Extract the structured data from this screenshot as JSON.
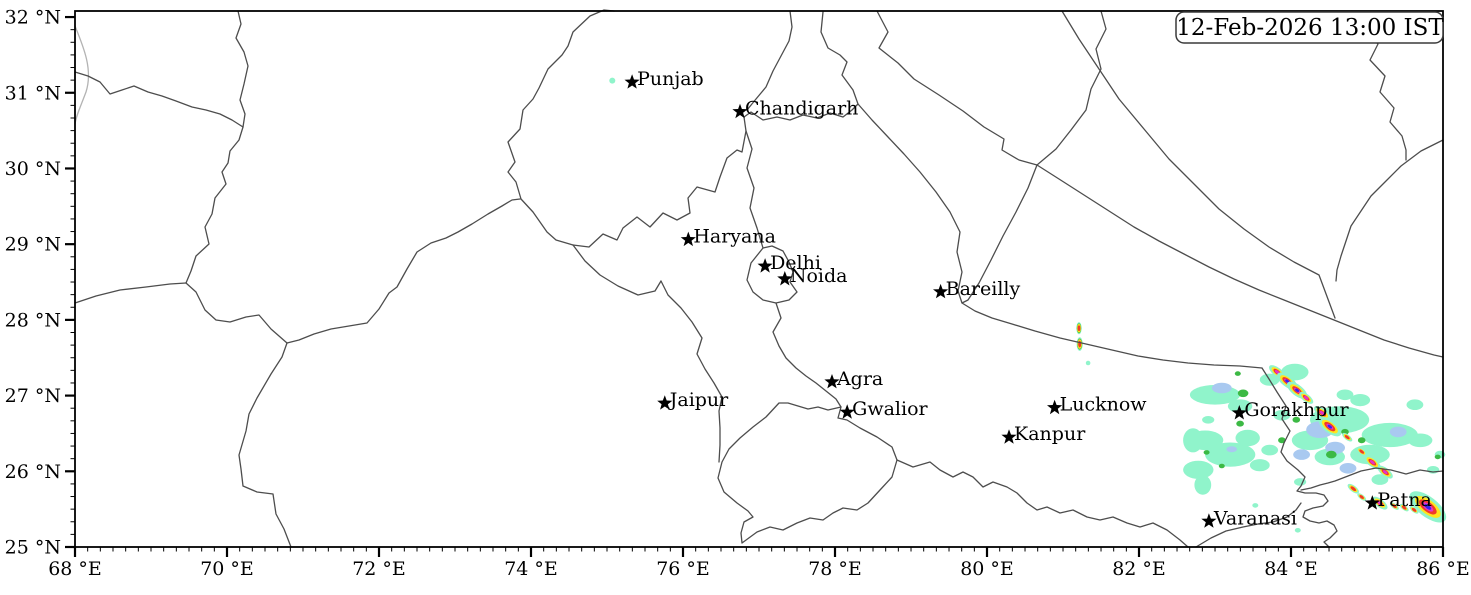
{
  "timestamp": {
    "text": "12-Feb-2026 13:00 IST"
  },
  "axes": {
    "lon_min": 68,
    "lon_max": 86,
    "lat_min": 25,
    "lat_max": 32.08,
    "x_ticks": [
      {
        "value": 68,
        "label": "68 °E"
      },
      {
        "value": 70,
        "label": "70 °E"
      },
      {
        "value": 72,
        "label": "72 °E"
      },
      {
        "value": 74,
        "label": "74 °E"
      },
      {
        "value": 76,
        "label": "76 °E"
      },
      {
        "value": 78,
        "label": "78 °E"
      },
      {
        "value": 80,
        "label": "80 °E"
      },
      {
        "value": 82,
        "label": "82 °E"
      },
      {
        "value": 84,
        "label": "84 °E"
      },
      {
        "value": 86,
        "label": "86 °E"
      }
    ],
    "y_ticks": [
      {
        "value": 25,
        "label": "25 °N"
      },
      {
        "value": 26,
        "label": "26 °N"
      },
      {
        "value": 27,
        "label": "27 °N"
      },
      {
        "value": 28,
        "label": "28 °N"
      },
      {
        "value": 29,
        "label": "29 °N"
      },
      {
        "value": 30,
        "label": "30 °N"
      },
      {
        "value": 31,
        "label": "31 °N"
      },
      {
        "value": 32,
        "label": "32 °N"
      }
    ],
    "minor_tick_step_deg": 0.16667
  },
  "cities": [
    {
      "name": "Punjab",
      "lon": 75.33,
      "lat": 31.14
    },
    {
      "name": "Chandigarh",
      "lon": 76.75,
      "lat": 30.75
    },
    {
      "name": "Haryana",
      "lon": 76.07,
      "lat": 29.06
    },
    {
      "name": "Delhi",
      "lon": 77.08,
      "lat": 28.71
    },
    {
      "name": "Noida",
      "lon": 77.34,
      "lat": 28.54
    },
    {
      "name": "Bareilly",
      "lon": 79.39,
      "lat": 28.37
    },
    {
      "name": "Agra",
      "lon": 77.96,
      "lat": 27.18
    },
    {
      "name": "Jaipur",
      "lon": 75.76,
      "lat": 26.9
    },
    {
      "name": "Gwalior",
      "lon": 78.16,
      "lat": 26.78
    },
    {
      "name": "Lucknow",
      "lon": 80.89,
      "lat": 26.84
    },
    {
      "name": "Kanpur",
      "lon": 80.29,
      "lat": 26.45
    },
    {
      "name": "Gorakhpur",
      "lon": 83.32,
      "lat": 26.77
    },
    {
      "name": "Varanasi",
      "lon": 82.92,
      "lat": 25.34
    },
    {
      "name": "Patna",
      "lon": 85.07,
      "lat": 25.58
    }
  ],
  "colors": {
    "boundary": "#4d4d4d",
    "coastline": "#b3b3b3",
    "axis": "#000000",
    "text": "#000000",
    "marker": "#000000",
    "precip_light": "#90f4cb",
    "precip_moderate": "#a9c9f0",
    "precip_heavy": "#3cb944",
    "storm_yellow": "#ffe51c",
    "storm_red": "#f03a28",
    "storm_magenta": "#e233cb",
    "storm_blue": "#3726ef"
  },
  "precip": {
    "level_order": [
      "light",
      "moderate",
      "heavy"
    ],
    "cells": [
      {
        "level": "light",
        "lon": 82.87,
        "lat": 26.41,
        "rx": 0.24,
        "ry": 0.13
      },
      {
        "level": "light",
        "lon": 83.2,
        "lat": 26.22,
        "rx": 0.33,
        "ry": 0.16
      },
      {
        "level": "light",
        "lon": 82.78,
        "lat": 26.02,
        "rx": 0.2,
        "ry": 0.12
      },
      {
        "level": "light",
        "lon": 83.43,
        "lat": 26.44,
        "rx": 0.16,
        "ry": 0.11
      },
      {
        "level": "light",
        "lon": 83.0,
        "lat": 27.01,
        "rx": 0.33,
        "ry": 0.13
      },
      {
        "level": "light",
        "lon": 83.33,
        "lat": 26.86,
        "rx": 0.16,
        "ry": 0.09
      },
      {
        "level": "light",
        "lon": 83.72,
        "lat": 27.21,
        "rx": 0.13,
        "ry": 0.08
      },
      {
        "level": "light",
        "lon": 84.05,
        "lat": 27.31,
        "rx": 0.18,
        "ry": 0.11
      },
      {
        "level": "light",
        "lon": 84.64,
        "lat": 26.68,
        "rx": 0.39,
        "ry": 0.18
      },
      {
        "level": "light",
        "lon": 85.3,
        "lat": 26.48,
        "rx": 0.37,
        "ry": 0.16
      },
      {
        "level": "light",
        "lon": 85.04,
        "lat": 26.22,
        "rx": 0.26,
        "ry": 0.13
      },
      {
        "level": "light",
        "lon": 84.51,
        "lat": 26.19,
        "rx": 0.2,
        "ry": 0.11
      },
      {
        "level": "light",
        "lon": 85.7,
        "lat": 26.41,
        "rx": 0.16,
        "ry": 0.09
      },
      {
        "level": "light",
        "lon": 84.25,
        "lat": 26.41,
        "rx": 0.24,
        "ry": 0.13
      },
      {
        "level": "light",
        "lon": 83.88,
        "lat": 26.74,
        "rx": 0.11,
        "ry": 0.07
      },
      {
        "level": "light",
        "lon": 84.91,
        "lat": 26.94,
        "rx": 0.13,
        "ry": 0.08
      },
      {
        "level": "light",
        "lon": 85.63,
        "lat": 26.88,
        "rx": 0.11,
        "ry": 0.07
      },
      {
        "level": "light",
        "lon": 85.87,
        "lat": 26.02,
        "rx": 0.08,
        "ry": 0.05
      },
      {
        "level": "light",
        "lon": 85.17,
        "lat": 25.89,
        "rx": 0.11,
        "ry": 0.07
      },
      {
        "level": "light",
        "lon": 84.12,
        "lat": 25.86,
        "rx": 0.08,
        "ry": 0.05
      },
      {
        "level": "light",
        "lon": 75.07,
        "lat": 31.16,
        "rx": 0.04,
        "ry": 0.04
      },
      {
        "level": "light",
        "lon": 81.33,
        "lat": 27.43,
        "rx": 0.03,
        "ry": 0.03
      },
      {
        "level": "light",
        "lon": 84.71,
        "lat": 27.01,
        "rx": 0.11,
        "ry": 0.07
      },
      {
        "level": "light",
        "lon": 85.96,
        "lat": 26.22,
        "rx": 0.07,
        "ry": 0.05
      },
      {
        "level": "light",
        "lon": 82.71,
        "lat": 26.41,
        "rx": 0.13,
        "ry": 0.16
      },
      {
        "level": "light",
        "lon": 82.84,
        "lat": 25.82,
        "rx": 0.11,
        "ry": 0.13
      },
      {
        "level": "light",
        "lon": 83.59,
        "lat": 26.08,
        "rx": 0.13,
        "ry": 0.08
      },
      {
        "level": "light",
        "lon": 83.72,
        "lat": 26.28,
        "rx": 0.11,
        "ry": 0.07
      },
      {
        "level": "light",
        "lon": 82.91,
        "lat": 26.68,
        "rx": 0.08,
        "ry": 0.05
      },
      {
        "level": "light",
        "lon": 84.09,
        "lat": 25.22,
        "rx": 0.04,
        "ry": 0.03
      },
      {
        "level": "light",
        "lon": 83.53,
        "lat": 25.55,
        "rx": 0.04,
        "ry": 0.03
      },
      {
        "level": "moderate",
        "lon": 84.38,
        "lat": 26.55,
        "rx": 0.18,
        "ry": 0.11
      },
      {
        "level": "moderate",
        "lon": 84.58,
        "lat": 26.31,
        "rx": 0.13,
        "ry": 0.08
      },
      {
        "level": "moderate",
        "lon": 84.14,
        "lat": 26.22,
        "rx": 0.11,
        "ry": 0.07
      },
      {
        "level": "moderate",
        "lon": 84.75,
        "lat": 26.04,
        "rx": 0.11,
        "ry": 0.07
      },
      {
        "level": "moderate",
        "lon": 85.41,
        "lat": 26.52,
        "rx": 0.11,
        "ry": 0.07
      },
      {
        "level": "moderate",
        "lon": 83.09,
        "lat": 27.1,
        "rx": 0.13,
        "ry": 0.07
      },
      {
        "level": "moderate",
        "lon": 83.22,
        "lat": 26.29,
        "rx": 0.07,
        "ry": 0.04
      },
      {
        "level": "heavy",
        "lon": 83.37,
        "lat": 27.03,
        "rx": 0.07,
        "ry": 0.05
      },
      {
        "level": "heavy",
        "lon": 83.3,
        "lat": 27.29,
        "rx": 0.04,
        "ry": 0.03
      },
      {
        "level": "heavy",
        "lon": 83.33,
        "lat": 26.63,
        "rx": 0.05,
        "ry": 0.04
      },
      {
        "level": "heavy",
        "lon": 84.51,
        "lat": 26.61,
        "rx": 0.07,
        "ry": 0.05
      },
      {
        "level": "heavy",
        "lon": 84.71,
        "lat": 26.52,
        "rx": 0.05,
        "ry": 0.04
      },
      {
        "level": "heavy",
        "lon": 84.93,
        "lat": 26.41,
        "rx": 0.05,
        "ry": 0.04
      },
      {
        "level": "heavy",
        "lon": 84.53,
        "lat": 26.22,
        "rx": 0.07,
        "ry": 0.05
      },
      {
        "level": "heavy",
        "lon": 83.88,
        "lat": 26.41,
        "rx": 0.05,
        "ry": 0.04
      },
      {
        "level": "heavy",
        "lon": 82.89,
        "lat": 26.25,
        "rx": 0.04,
        "ry": 0.03
      },
      {
        "level": "heavy",
        "lon": 83.09,
        "lat": 26.07,
        "rx": 0.04,
        "ry": 0.03
      },
      {
        "level": "heavy",
        "lon": 84.07,
        "lat": 26.68,
        "rx": 0.05,
        "ry": 0.04
      },
      {
        "level": "heavy",
        "lon": 85.93,
        "lat": 26.19,
        "rx": 0.04,
        "ry": 0.03
      }
    ],
    "storm_cells": [
      {
        "lon": 83.82,
        "lat": 27.31,
        "len": 0.13,
        "rot": 38
      },
      {
        "lon": 83.95,
        "lat": 27.19,
        "len": 0.16,
        "rot": 38
      },
      {
        "lon": 84.08,
        "lat": 27.07,
        "len": 0.16,
        "rot": 38
      },
      {
        "lon": 84.2,
        "lat": 26.97,
        "len": 0.11,
        "rot": 38
      },
      {
        "lon": 84.41,
        "lat": 26.77,
        "len": 0.13,
        "rot": 38
      },
      {
        "lon": 84.51,
        "lat": 26.59,
        "len": 0.18,
        "rot": 38
      },
      {
        "lon": 84.74,
        "lat": 26.45,
        "len": 0.08,
        "rot": 38
      },
      {
        "lon": 84.93,
        "lat": 26.26,
        "len": 0.08,
        "rot": 38
      },
      {
        "lon": 85.07,
        "lat": 26.12,
        "len": 0.13,
        "rot": 38
      },
      {
        "lon": 85.24,
        "lat": 25.99,
        "len": 0.12,
        "rot": 38
      },
      {
        "lon": 84.82,
        "lat": 25.77,
        "len": 0.09,
        "rot": 38
      },
      {
        "lon": 84.93,
        "lat": 25.66,
        "len": 0.07,
        "rot": 38
      },
      {
        "lon": 85.17,
        "lat": 25.58,
        "len": 0.12,
        "rot": 38
      },
      {
        "lon": 85.36,
        "lat": 25.54,
        "len": 0.07,
        "rot": 38
      },
      {
        "lon": 85.49,
        "lat": 25.52,
        "len": 0.07,
        "rot": 38
      },
      {
        "lon": 85.62,
        "lat": 25.49,
        "len": 0.07,
        "rot": 38
      },
      {
        "lon": 85.8,
        "lat": 25.53,
        "len": 0.29,
        "rot": 38
      },
      {
        "lon": 81.21,
        "lat": 27.89,
        "len": 0.08,
        "rot": 90,
        "green": true
      },
      {
        "lon": 81.22,
        "lat": 27.68,
        "len": 0.09,
        "rot": 90,
        "green": true
      }
    ]
  }
}
